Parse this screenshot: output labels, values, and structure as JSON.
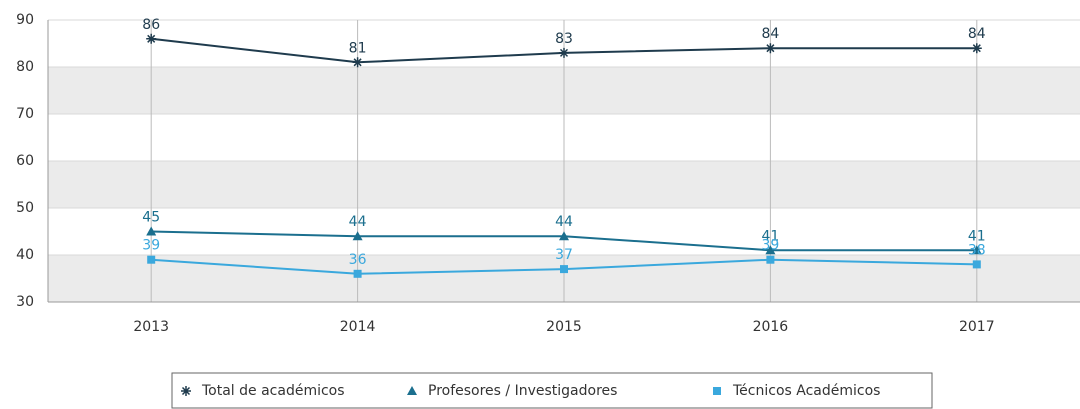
{
  "chart_data": {
    "type": "line",
    "categories": [
      "2013",
      "2014",
      "2015",
      "2016",
      "2017"
    ],
    "series": [
      {
        "name": "Total de académicos",
        "color": "#1f3b4d",
        "marker": "star",
        "values": [
          86,
          81,
          83,
          84,
          84
        ]
      },
      {
        "name": "Profesores / Investigadores",
        "color": "#1b6f8e",
        "marker": "triangle",
        "values": [
          45,
          44,
          44,
          41,
          41
        ]
      },
      {
        "name": "Técnicos Académicos",
        "color": "#3aa8dd",
        "marker": "square",
        "values": [
          39,
          36,
          37,
          39,
          38
        ]
      }
    ],
    "ylim": [
      30,
      90
    ],
    "yticks": [
      30,
      40,
      50,
      60,
      70,
      80,
      90
    ],
    "grid": true,
    "banded": true,
    "legend": "bottom"
  }
}
